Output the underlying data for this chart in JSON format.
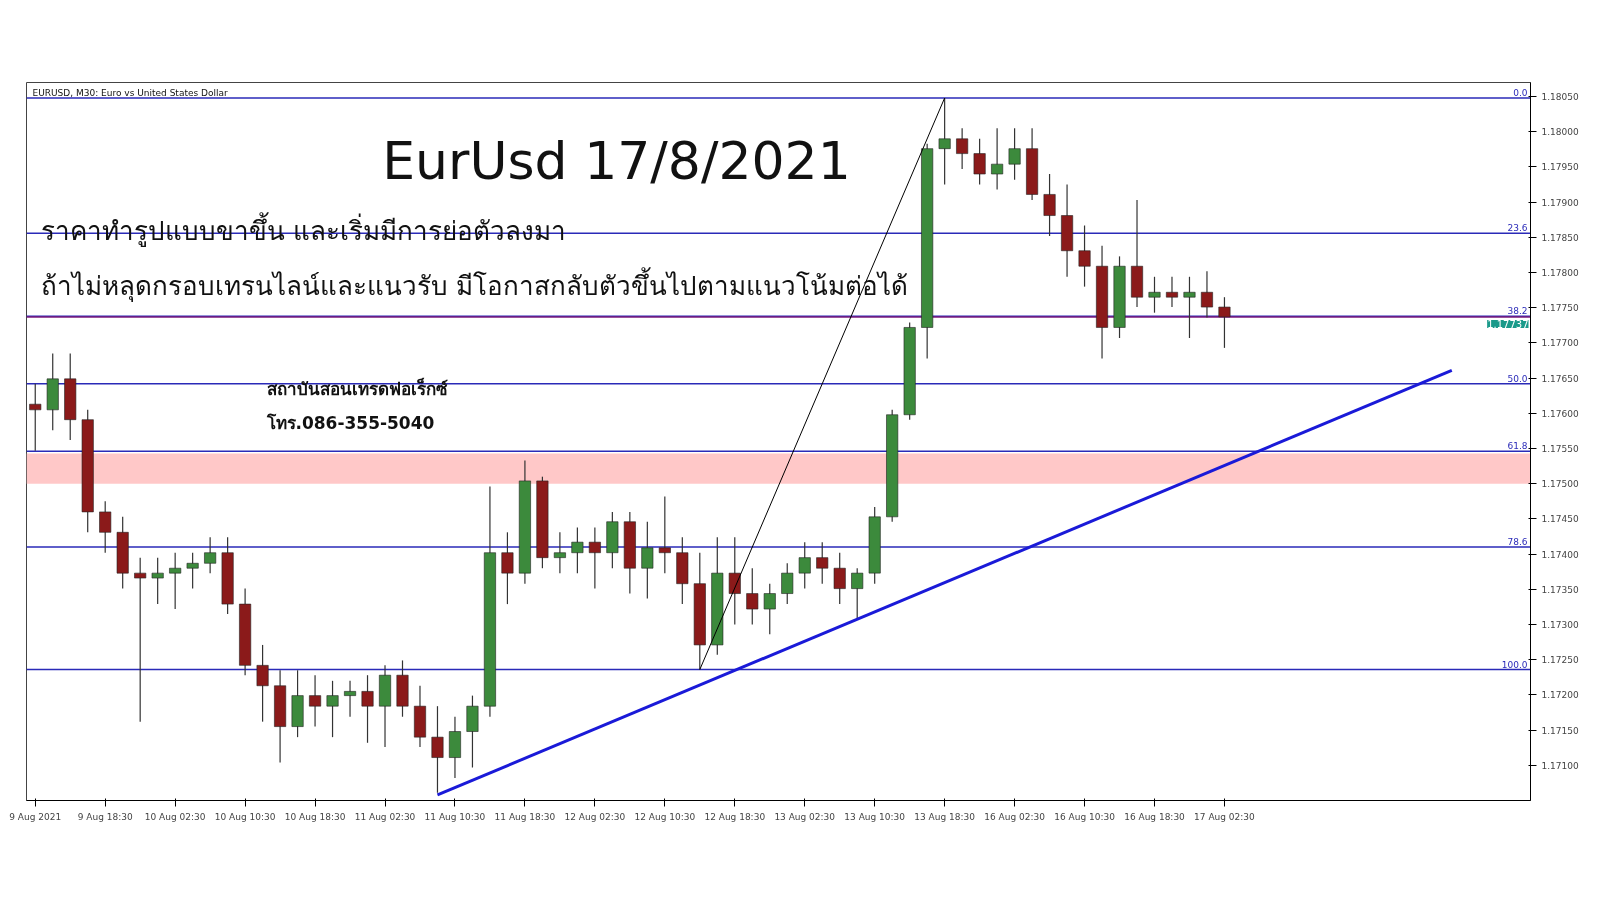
{
  "chart_data": {
    "type": "candlestick",
    "title": "EurUsd 17/8/2021",
    "annotations": [
      "EURUSD, M30:  Euro vs United States Dollar",
      "ราคาทำรูปแบบขาขึ้น และเริ่มมีการย่อตัวลงมา",
      "ถ้าไม่หลุดกรอบเทรนไลน์และแนวรับ มีโอกาสกลับตัวขึ้นไปตามแนวโน้มต่อได้",
      "สถาบันสอนเทรดฟอเร็กซ์",
      "โทร.086-355-5040",
      {
        "text": "0.0",
        "y": 1.18048
      },
      {
        "text": "23.6",
        "y": 1.17856
      },
      {
        "text": "38.2",
        "y": 1.17738
      },
      {
        "text": "50.0",
        "y": 1.17642
      },
      {
        "text": "61.8",
        "y": 1.17546
      },
      {
        "text": "78.6",
        "y": 1.1741
      },
      {
        "text": "100.0",
        "y": 1.17236
      }
    ],
    "categories": [
      "9 Aug 2021",
      null,
      null,
      null,
      "9 Aug 18:30",
      null,
      null,
      null,
      "10 Aug 02:30",
      null,
      null,
      null,
      "10 Aug 10:30",
      null,
      null,
      null,
      "10 Aug 18:30",
      null,
      null,
      null,
      "11 Aug 02:30",
      null,
      null,
      null,
      "11 Aug 10:30",
      null,
      null,
      null,
      "11 Aug 18:30",
      null,
      null,
      null,
      "12 Aug 02:30",
      null,
      null,
      null,
      "12 Aug 10:30",
      null,
      null,
      null,
      "12 Aug 18:30",
      null,
      null,
      null,
      "13 Aug 02:30",
      null,
      null,
      null,
      "13 Aug 10:30",
      null,
      null,
      null,
      "13 Aug 18:30",
      null,
      null,
      null,
      "16 Aug 02:30",
      null,
      null,
      null,
      "16 Aug 10:30",
      null,
      null,
      null,
      "16 Aug 18:30",
      null,
      null,
      null,
      "17 Aug 02:30",
      null,
      null,
      null,
      null,
      null,
      null,
      null,
      null,
      null,
      null,
      null,
      null,
      null,
      null,
      null,
      null,
      null
    ],
    "ylim": [
      1.1705,
      1.1807
    ],
    "yticks": [
      {
        "value": 1.171,
        "label": "1.17100"
      },
      {
        "value": 1.1715,
        "label": "1.17150"
      },
      {
        "value": 1.172,
        "label": "1.17200"
      },
      {
        "value": 1.1725,
        "label": "1.17250"
      },
      {
        "value": 1.173,
        "label": "1.17300"
      },
      {
        "value": 1.1735,
        "label": "1.17350"
      },
      {
        "value": 1.174,
        "label": "1.17400"
      },
      {
        "value": 1.1745,
        "label": "1.17450"
      },
      {
        "value": 1.175,
        "label": "1.17500"
      },
      {
        "value": 1.1755,
        "label": "1.17550"
      },
      {
        "value": 1.176,
        "label": "1.17600"
      },
      {
        "value": 1.1765,
        "label": "1.17650"
      },
      {
        "value": 1.177,
        "label": "1.17700"
      },
      {
        "value": 1.1775,
        "label": "1.17750"
      },
      {
        "value": 1.178,
        "label": "1.17800"
      },
      {
        "value": 1.1785,
        "label": "1.17850"
      },
      {
        "value": 1.179,
        "label": "1.17900"
      },
      {
        "value": 1.1795,
        "label": "1.17950"
      },
      {
        "value": 1.18,
        "label": "1.18000"
      },
      {
        "value": 1.1805,
        "label": "1.18050"
      }
    ],
    "series": [
      {
        "colors": [
          "#8b1a1a",
          "#3c8a3c",
          "#8b1a1a",
          "#8b1a1a",
          "#8b1a1a",
          "#8b1a1a",
          "#8b1a1a",
          "#3c8a3c",
          "#3c8a3c",
          "#3c8a3c",
          "#3c8a3c",
          "#8b1a1a",
          "#8b1a1a",
          "#8b1a1a",
          "#8b1a1a",
          "#3c8a3c",
          "#8b1a1a",
          "#3c8a3c",
          "#3c8a3c",
          "#8b1a1a",
          "#3c8a3c",
          "#8b1a1a",
          "#8b1a1a",
          "#8b1a1a",
          "#3c8a3c",
          "#3c8a3c",
          "#3c8a3c",
          "#8b1a1a",
          "#3c8a3c",
          "#8b1a1a",
          "#3c8a3c",
          "#3c8a3c",
          "#8b1a1a",
          "#3c8a3c",
          "#8b1a1a",
          "#3c8a3c",
          "#8b1a1a",
          "#8b1a1a",
          "#8b1a1a",
          "#3c8a3c",
          "#8b1a1a",
          "#8b1a1a",
          "#3c8a3c",
          "#3c8a3c",
          "#3c8a3c",
          "#8b1a1a",
          "#8b1a1a",
          "#3c8a3c",
          "#3c8a3c",
          "#3c8a3c",
          "#3c8a3c",
          "#3c8a3c",
          "#3c8a3c",
          "#8b1a1a",
          "#8b1a1a",
          "#3c8a3c",
          "#3c8a3c",
          "#8b1a1a",
          "#8b1a1a",
          "#8b1a1a",
          "#8b1a1a",
          "#8b1a1a",
          "#3c8a3c",
          "#8b1a1a",
          "#3c8a3c",
          "#8b1a1a",
          "#3c8a3c",
          "#8b1a1a",
          "#8b1a1a",
          null,
          null,
          null,
          null,
          null,
          null,
          null,
          null,
          null,
          null,
          null,
          null,
          null,
          null,
          null,
          null,
          null
        ],
        "ohlc": [
          [
            1.17613,
            1.17642,
            1.17547,
            1.17605
          ],
          [
            1.17605,
            1.17685,
            1.17576,
            1.17649
          ],
          [
            1.17649,
            1.17685,
            1.17562,
            1.17591
          ],
          [
            1.17591,
            1.17605,
            1.17431,
            1.1746
          ],
          [
            1.1746,
            1.17475,
            1.17402,
            1.17431
          ],
          [
            1.17431,
            1.17453,
            1.17351,
            1.17373
          ],
          [
            1.17373,
            1.17395,
            1.17162,
            1.17366
          ],
          [
            1.17366,
            1.17395,
            1.17329,
            1.17373
          ],
          [
            1.17373,
            1.17402,
            1.17322,
            1.1738
          ],
          [
            1.1738,
            1.17402,
            1.17351,
            1.17387
          ],
          [
            1.17387,
            1.17424,
            1.17373,
            1.17402
          ],
          [
            1.17402,
            1.17424,
            1.17315,
            1.17329
          ],
          [
            1.17329,
            1.17351,
            1.17228,
            1.17242
          ],
          [
            1.17242,
            1.17271,
            1.17162,
            1.17213
          ],
          [
            1.17213,
            1.17235,
            1.17104,
            1.17155
          ],
          [
            1.17155,
            1.17235,
            1.1714,
            1.17199
          ],
          [
            1.17199,
            1.17228,
            1.17155,
            1.17184
          ],
          [
            1.17184,
            1.1722,
            1.1714,
            1.17199
          ],
          [
            1.17199,
            1.1722,
            1.17169,
            1.17205
          ],
          [
            1.17205,
            1.17228,
            1.17132,
            1.17184
          ],
          [
            1.17184,
            1.17242,
            1.17126,
            1.17228
          ],
          [
            1.17228,
            1.17249,
            1.17169,
            1.17184
          ],
          [
            1.17184,
            1.17213,
            1.17126,
            1.1714
          ],
          [
            1.1714,
            1.17184,
            1.17061,
            1.17111
          ],
          [
            1.17111,
            1.17169,
            1.17082,
            1.17148
          ],
          [
            1.17148,
            1.17199,
            1.17097,
            1.17184
          ],
          [
            1.17184,
            1.17496,
            1.17169,
            1.17402
          ],
          [
            1.17402,
            1.17431,
            1.17329,
            1.17373
          ],
          [
            1.17373,
            1.17533,
            1.17358,
            1.17504
          ],
          [
            1.17504,
            1.1751,
            1.1738,
            1.17395
          ],
          [
            1.17395,
            1.17431,
            1.17373,
            1.17402
          ],
          [
            1.17402,
            1.17438,
            1.17373,
            1.17417
          ],
          [
            1.17417,
            1.17438,
            1.17351,
            1.17402
          ],
          [
            1.17402,
            1.1746,
            1.1738,
            1.17446
          ],
          [
            1.17446,
            1.1746,
            1.17344,
            1.1738
          ],
          [
            1.1738,
            1.17446,
            1.17337,
            1.17409
          ],
          [
            1.17409,
            1.17482,
            1.17373,
            1.17402
          ],
          [
            1.17402,
            1.17424,
            1.17329,
            1.17358
          ],
          [
            1.17358,
            1.17402,
            1.17236,
            1.17271
          ],
          [
            1.17271,
            1.17424,
            1.17257,
            1.17373
          ],
          [
            1.17373,
            1.17424,
            1.173,
            1.17344
          ],
          [
            1.17344,
            1.1738,
            1.173,
            1.17322
          ],
          [
            1.17322,
            1.17358,
            1.17286,
            1.17344
          ],
          [
            1.17344,
            1.17387,
            1.17329,
            1.17373
          ],
          [
            1.17373,
            1.17417,
            1.17351,
            1.17395
          ],
          [
            1.17395,
            1.17417,
            1.17358,
            1.1738
          ],
          [
            1.1738,
            1.17402,
            1.17329,
            1.17351
          ],
          [
            1.17351,
            1.1738,
            1.17308,
            1.17373
          ],
          [
            1.17373,
            1.17467,
            1.17358,
            1.17453
          ],
          [
            1.17453,
            1.17605,
            1.17446,
            1.17598
          ],
          [
            1.17598,
            1.17729,
            1.17591,
            1.17722
          ],
          [
            1.17722,
            1.17983,
            1.17678,
            1.17976
          ],
          [
            1.17976,
            1.18048,
            1.17925,
            1.1799
          ],
          [
            1.1799,
            1.18005,
            1.17947,
            1.17969
          ],
          [
            1.17969,
            1.1799,
            1.17925,
            1.1794
          ],
          [
            1.1794,
            1.18005,
            1.17918,
            1.17954
          ],
          [
            1.17954,
            1.18005,
            1.17932,
            1.17976
          ],
          [
            1.17976,
            1.18005,
            1.17903,
            1.17911
          ],
          [
            1.17911,
            1.1794,
            1.17852,
            1.17881
          ],
          [
            1.17881,
            1.17925,
            1.17794,
            1.17831
          ],
          [
            1.17831,
            1.17867,
            1.1778,
            1.17809
          ],
          [
            1.17809,
            1.17838,
            1.17678,
            1.17722
          ],
          [
            1.17722,
            1.17823,
            1.17707,
            1.17809
          ],
          [
            1.17809,
            1.17903,
            1.17751,
            1.17765
          ],
          [
            1.17765,
            1.17794,
            1.17743,
            1.17772
          ],
          [
            1.17772,
            1.17794,
            1.17751,
            1.17765
          ],
          [
            1.17765,
            1.17794,
            1.17707,
            1.17772
          ],
          [
            1.17772,
            1.17802,
            1.17736,
            1.17751
          ],
          [
            1.17751,
            1.17765,
            1.17693,
            1.17737
          ],
          null,
          null,
          null,
          null,
          null,
          null,
          null,
          null,
          null,
          null,
          null,
          null,
          null,
          null,
          null,
          null,
          null
        ]
      },
      {
        "type": "line",
        "color": "#1a1ad8",
        "values": [
          null,
          null,
          null,
          null,
          null,
          null,
          null,
          null,
          null,
          null,
          null,
          null,
          null,
          null,
          null,
          null,
          null,
          null,
          null,
          null,
          null,
          null,
          null,
          1.17058,
          null,
          null,
          null,
          null,
          null,
          null,
          null,
          null,
          null,
          null,
          null,
          null,
          null,
          null,
          null,
          null,
          null,
          null,
          null,
          null,
          null,
          null,
          null,
          null,
          null,
          null,
          null,
          null,
          null,
          null,
          null,
          null,
          null,
          null,
          null,
          null,
          null,
          null,
          null,
          null,
          null,
          null,
          null,
          null,
          null,
          null,
          null,
          null,
          null,
          null,
          null,
          null,
          null,
          null,
          null,
          null,
          null,
          1.17661,
          null,
          null,
          null,
          null
        ]
      },
      {
        "type": "line",
        "color": "#000000",
        "values": [
          null,
          null,
          null,
          null,
          null,
          null,
          null,
          null,
          null,
          null,
          null,
          null,
          null,
          null,
          null,
          null,
          null,
          null,
          null,
          null,
          null,
          null,
          null,
          null,
          null,
          null,
          null,
          null,
          null,
          null,
          null,
          null,
          null,
          null,
          null,
          null,
          null,
          null,
          1.17236,
          null,
          null,
          null,
          null,
          null,
          null,
          null,
          null,
          null,
          null,
          null,
          null,
          null,
          1.18048,
          null,
          null,
          null,
          null,
          null,
          null,
          null,
          null,
          null,
          null,
          null,
          null,
          null,
          null,
          null,
          null,
          null,
          null,
          null,
          null,
          null,
          null,
          null,
          null,
          null,
          null,
          null,
          null,
          null,
          null,
          null,
          null,
          null
        ]
      }
    ],
    "ref_lines": [
      {
        "axis": "y",
        "value": 1.18048,
        "color": "#2a2ab8"
      },
      {
        "axis": "y",
        "value": 1.17856,
        "color": "#2a2ab8"
      },
      {
        "axis": "y",
        "value": 1.17738,
        "color": "#2a2ab8"
      },
      {
        "axis": "y",
        "value": 1.17642,
        "color": "#2a2ab8"
      },
      {
        "axis": "y",
        "value": 1.17546,
        "color": "#2a2ab8"
      },
      {
        "axis": "y",
        "value": 1.1741,
        "color": "#2a2ab8"
      },
      {
        "axis": "y",
        "value": 1.17236,
        "color": "#2a2ab8"
      },
      {
        "axis": "y",
        "value": 1.17737,
        "label": "1.17737",
        "color": "#7a1a7a"
      }
    ],
    "bands": [
      {
        "axis": "y",
        "from": 1.175,
        "to": 1.17543,
        "color": "#ffc8c8"
      }
    ]
  }
}
